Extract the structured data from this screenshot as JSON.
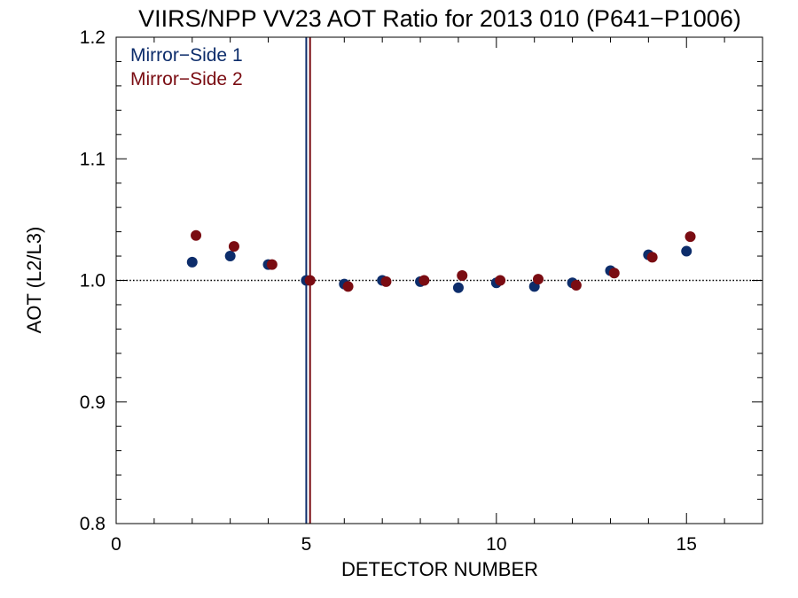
{
  "chart_data": {
    "type": "scatter",
    "title": "VIIRS/NPP VV23 AOT Ratio for 2013 010 (P641−P1006)",
    "xlabel": "DETECTOR NUMBER",
    "ylabel": "AOT (L2/L3)",
    "xlim": [
      0,
      17
    ],
    "ylim": [
      0.8,
      1.2
    ],
    "x_ticks": [
      0,
      5,
      10,
      15
    ],
    "x_tick_labels": [
      "0",
      "5",
      "10",
      "15"
    ],
    "y_ticks": [
      0.8,
      0.9,
      1.0,
      1.1,
      1.2
    ],
    "y_tick_labels": [
      "0.8",
      "0.9",
      "1.0",
      "1.1",
      "1.2"
    ],
    "reference_line": {
      "y": 1.0,
      "style": "dotted"
    },
    "vertical_lines": [
      {
        "x": 5.0,
        "color": "#0d2d6b"
      },
      {
        "x": 5.1,
        "color": "#7a0c12"
      }
    ],
    "legend": {
      "position": "top-left"
    },
    "series": [
      {
        "name": "Mirror−Side 1",
        "color": "#0d2d6b",
        "x": [
          2,
          3,
          4,
          5,
          6,
          7,
          8,
          9,
          10,
          11,
          12,
          13,
          14,
          15
        ],
        "y": [
          1.015,
          1.02,
          1.013,
          1.0,
          0.997,
          1.0,
          0.999,
          0.994,
          0.998,
          0.995,
          0.998,
          1.008,
          1.021,
          1.024
        ]
      },
      {
        "name": "Mirror−Side 2",
        "color": "#7a0c12",
        "x": [
          2.1,
          3.1,
          4.1,
          5.1,
          6.1,
          7.1,
          8.1,
          9.1,
          10.1,
          11.1,
          12.1,
          13.1,
          14.1,
          15.1
        ],
        "y": [
          1.037,
          1.028,
          1.013,
          1.0,
          0.995,
          0.999,
          1.0,
          1.004,
          1.0,
          1.001,
          0.996,
          1.006,
          1.019,
          1.036
        ]
      }
    ]
  }
}
